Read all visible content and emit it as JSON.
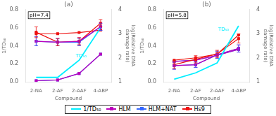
{
  "chart_data": [
    {
      "type": "line",
      "title": "(a)",
      "categories": [
        "2-NA",
        "2-AF",
        "2-AAF",
        "4-ABP"
      ],
      "xlabel": "Compound",
      "ylabel": "1/TD₅₀",
      "y2label": "log(Relative DNA\ndamage rate)",
      "ylim": [
        0,
        0.8
      ],
      "yticks": [
        {
          "value": 0,
          "label": "0.0"
        },
        0.2,
        0.4,
        0.6,
        0.8
      ],
      "y2lim": [
        1,
        4
      ],
      "y2ticks": [
        1,
        2,
        3,
        4
      ],
      "grid": false,
      "legend": "bottom",
      "annotations": [
        {
          "text": "pH=7.4"
        },
        {
          "text": "TD₅₀",
          "x": 1.85,
          "y": 0.26,
          "color": "#00EEFF"
        }
      ],
      "series": [
        {
          "name": "1/TD₅₀",
          "color": "#00EEFF",
          "values": [
            0.05,
            0.05,
            0.24,
            0.6
          ]
        },
        {
          "name": "HLM",
          "color": "#BB00BB",
          "marker": "square",
          "values": [
            0.45,
            0.44,
            0.45,
            0.61
          ],
          "errors": [
            0.05,
            0.04,
            0.04,
            0.04
          ]
        },
        {
          "name": "HLM+NAT",
          "color": "#3366FF",
          "marker": "square",
          "values": [
            0.45,
            0.44,
            0.44,
            0.61
          ],
          "errors": [
            0.05,
            0.04,
            0.04,
            0.04
          ]
        },
        {
          "name": "Hs9",
          "color": "#EE1111",
          "marker": "square",
          "values": [
            0.55,
            0.44,
            0.45,
            0.65
          ],
          "errors": [
            0.06,
            0.04,
            0.04,
            0.04
          ]
        },
        {
          "color": "#EE1111",
          "marker": "square",
          "axis": "y2",
          "values": [
            3.0,
            3.0,
            3.05,
            3.15
          ]
        },
        {
          "color": "#BB00BB",
          "marker": "square",
          "axis": "y2",
          "values": [
            1.05,
            1.08,
            1.35,
            2.15
          ]
        },
        {
          "color": "#3366FF",
          "marker": "square",
          "axis": "y2",
          "values": [
            1.05,
            1.08,
            1.35,
            2.15
          ]
        }
      ]
    },
    {
      "type": "line",
      "title": "(b)",
      "categories": [
        "2-NA",
        "2-AF",
        "2-AAF",
        "4-ABP"
      ],
      "xlabel": "Compound",
      "ylabel": "1/TD₅₀",
      "y2label": "log(Relative DNA\ndamage rate)",
      "ylim": [
        0,
        0.8
      ],
      "yticks": [
        {
          "value": 0,
          "label": "0.0"
        },
        0.2,
        0.4,
        0.6,
        0.8
      ],
      "y2lim": [
        1,
        4
      ],
      "y2ticks": [
        1,
        2,
        3,
        4
      ],
      "grid": false,
      "annotations": [
        {
          "text": "pH=5.8"
        },
        {
          "text": "TD₅₀",
          "x": 2.05,
          "y": 0.55,
          "color": "#00EEFF"
        }
      ],
      "series": [
        {
          "color": "#00EEFF",
          "values": [
            0.03,
            0.1,
            0.21,
            0.62
          ]
        },
        {
          "color": "#BB00BB",
          "marker": "square",
          "values": [
            0.18,
            0.19,
            0.3,
            0.37
          ],
          "errors": [
            0.04,
            0.03,
            0.04,
            0.04
          ]
        },
        {
          "color": "#3366FF",
          "marker": "square",
          "values": [
            0.18,
            0.19,
            0.3,
            0.37
          ],
          "errors": [
            0.04,
            0.03,
            0.04,
            0.04
          ]
        },
        {
          "color": "#EE1111",
          "marker": "square",
          "values": [
            0.19,
            0.25,
            0.31,
            0.48
          ],
          "errors": [
            0.04,
            0.04,
            0.04,
            0.05
          ]
        },
        {
          "color": "#EE1111",
          "marker": "square",
          "axis": "y2",
          "values": [
            1.9,
            2.0,
            2.15,
            2.95
          ]
        },
        {
          "color": "#BB00BB",
          "marker": "square",
          "axis": "y2",
          "values": [
            1.85,
            1.9,
            2.1,
            2.35
          ]
        },
        {
          "color": "#3366FF",
          "marker": "square",
          "axis": "y2",
          "values": [
            1.85,
            1.9,
            2.1,
            2.35
          ]
        }
      ]
    }
  ]
}
